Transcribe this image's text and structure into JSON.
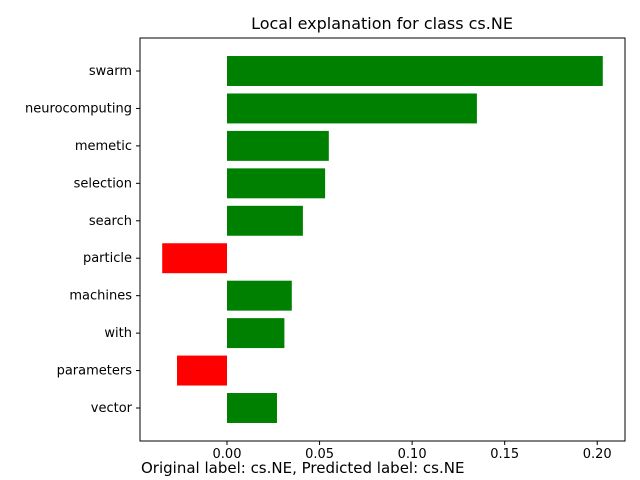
{
  "chart_data": {
    "type": "bar",
    "orientation": "horizontal",
    "title": "Local explanation for class cs.NE",
    "xlabel": "",
    "ylabel": "",
    "categories": [
      "swarm",
      "neurocomputing",
      "memetic",
      "selection",
      "search",
      "particle",
      "machines",
      "with",
      "parameters",
      "vector"
    ],
    "values": [
      0.203,
      0.135,
      0.055,
      0.053,
      0.041,
      -0.035,
      0.035,
      0.031,
      -0.027,
      0.027
    ],
    "xlim": [
      -0.047,
      0.215
    ],
    "xticks": [
      0.0,
      0.05,
      0.1,
      0.15,
      0.2
    ],
    "xtick_labels": [
      "0.00",
      "0.05",
      "0.10",
      "0.15",
      "0.20"
    ],
    "grid": false,
    "colors": {
      "positive": "#008000",
      "negative": "#ff0000"
    }
  },
  "caption": "Original label: cs.NE, Predicted label: cs.NE"
}
